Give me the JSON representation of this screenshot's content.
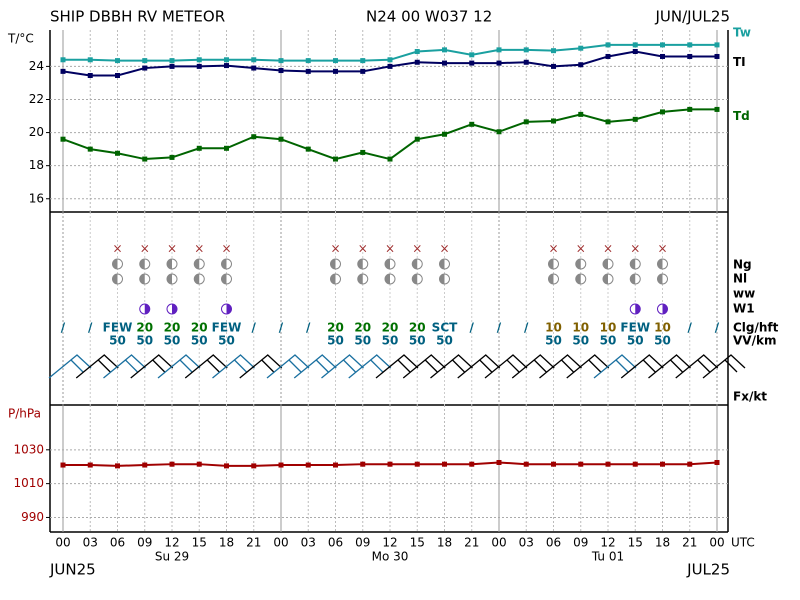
{
  "header": {
    "station": "SHIP DBBH RV METEOR",
    "position": "N24 00 W037 12",
    "period": "JUN/JUL25",
    "start_month": "JUN25",
    "end_month": "JUL25",
    "time_unit": "UTC"
  },
  "chart_data": [
    {
      "type": "line",
      "y_label": "T/°C",
      "ylim": [
        15.2,
        26.2
      ],
      "yticks": [
        16,
        18,
        20,
        22,
        24
      ],
      "grid": true,
      "series": [
        {
          "name": "Tw",
          "color": "#1aa0a0",
          "values": [
            24.4,
            24.4,
            24.35,
            24.35,
            24.35,
            24.4,
            24.4,
            24.4,
            24.35,
            24.35,
            24.35,
            24.35,
            24.4,
            24.9,
            25.0,
            24.7,
            25.0,
            25.0,
            24.95,
            25.1,
            25.3,
            25.3,
            25.3,
            25.3,
            25.3
          ]
        },
        {
          "name": "TI",
          "color": "#000060",
          "values": [
            23.7,
            23.45,
            23.45,
            23.9,
            24.0,
            24.0,
            24.05,
            23.9,
            23.75,
            23.7,
            23.7,
            23.7,
            24.0,
            24.25,
            24.2,
            24.2,
            24.2,
            24.25,
            24.0,
            24.1,
            24.6,
            24.9,
            24.6,
            24.6,
            24.6
          ]
        },
        {
          "name": "Td",
          "color": "#006400",
          "values": [
            19.6,
            19.0,
            18.75,
            18.4,
            18.5,
            19.05,
            19.05,
            19.75,
            19.6,
            19.0,
            18.4,
            18.8,
            18.4,
            19.6,
            19.9,
            20.5,
            20.05,
            20.65,
            20.7,
            21.1,
            20.65,
            20.8,
            21.25,
            21.4,
            21.4
          ]
        }
      ]
    },
    {
      "type": "line",
      "y_label": "P/hPa",
      "ylim": [
        981.4,
        1056.5
      ],
      "yticks": [
        990,
        1010,
        1030
      ],
      "grid": true,
      "categories": [
        "00",
        "03",
        "06",
        "09",
        "12",
        "15",
        "18",
        "21",
        "00",
        "03",
        "06",
        "09",
        "12",
        "15",
        "18",
        "21",
        "00",
        "03",
        "06",
        "09",
        "12",
        "15",
        "18",
        "21",
        "00"
      ],
      "day_labels": [
        null,
        null,
        null,
        null,
        "Su 29",
        null,
        null,
        null,
        null,
        null,
        null,
        null,
        "Mo 30",
        null,
        null,
        null,
        null,
        null,
        null,
        null,
        "Tu 01",
        null,
        null,
        null,
        null
      ],
      "series": [
        {
          "name": "P",
          "color": "#a00000",
          "values": [
            1021,
            1021,
            1020.5,
            1021,
            1021.5,
            1021.5,
            1020.5,
            1020.5,
            1021,
            1021,
            1021,
            1021.5,
            1021.5,
            1021.5,
            1021.5,
            1021.5,
            1022.5,
            1021.5,
            1021.5,
            1021.5,
            1021.5,
            1021.5,
            1021.5,
            1021.5,
            1022.5
          ]
        }
      ]
    }
  ],
  "observations": {
    "rows": [
      "Ng",
      "Nl",
      "ww",
      "W1",
      "Clg/hft",
      "VV/km",
      "Fx/kt"
    ],
    "clg": [
      "/",
      "/",
      "FEW",
      "20",
      "20",
      "20",
      "FEW",
      "/",
      "/",
      "/",
      "20",
      "20",
      "20",
      "20",
      "SCT",
      "/",
      "/",
      "/",
      "10",
      "10",
      "10",
      "FEW",
      "10",
      "/",
      "/"
    ],
    "clg_colors": [
      "#006080",
      "#006080",
      "#006080",
      "#007000",
      "#007000",
      "#007000",
      "#006080",
      "#006080",
      "#006080",
      "#006080",
      "#007000",
      "#007000",
      "#007000",
      "#007000",
      "#006080",
      "#006080",
      "#006080",
      "#006080",
      "#806000",
      "#806000",
      "#806000",
      "#006080",
      "#806000",
      "#006080",
      "#006080"
    ],
    "vv": [
      null,
      null,
      50,
      50,
      50,
      50,
      50,
      null,
      null,
      null,
      50,
      50,
      50,
      50,
      50,
      null,
      null,
      null,
      50,
      50,
      50,
      50,
      50,
      null,
      null
    ]
  }
}
